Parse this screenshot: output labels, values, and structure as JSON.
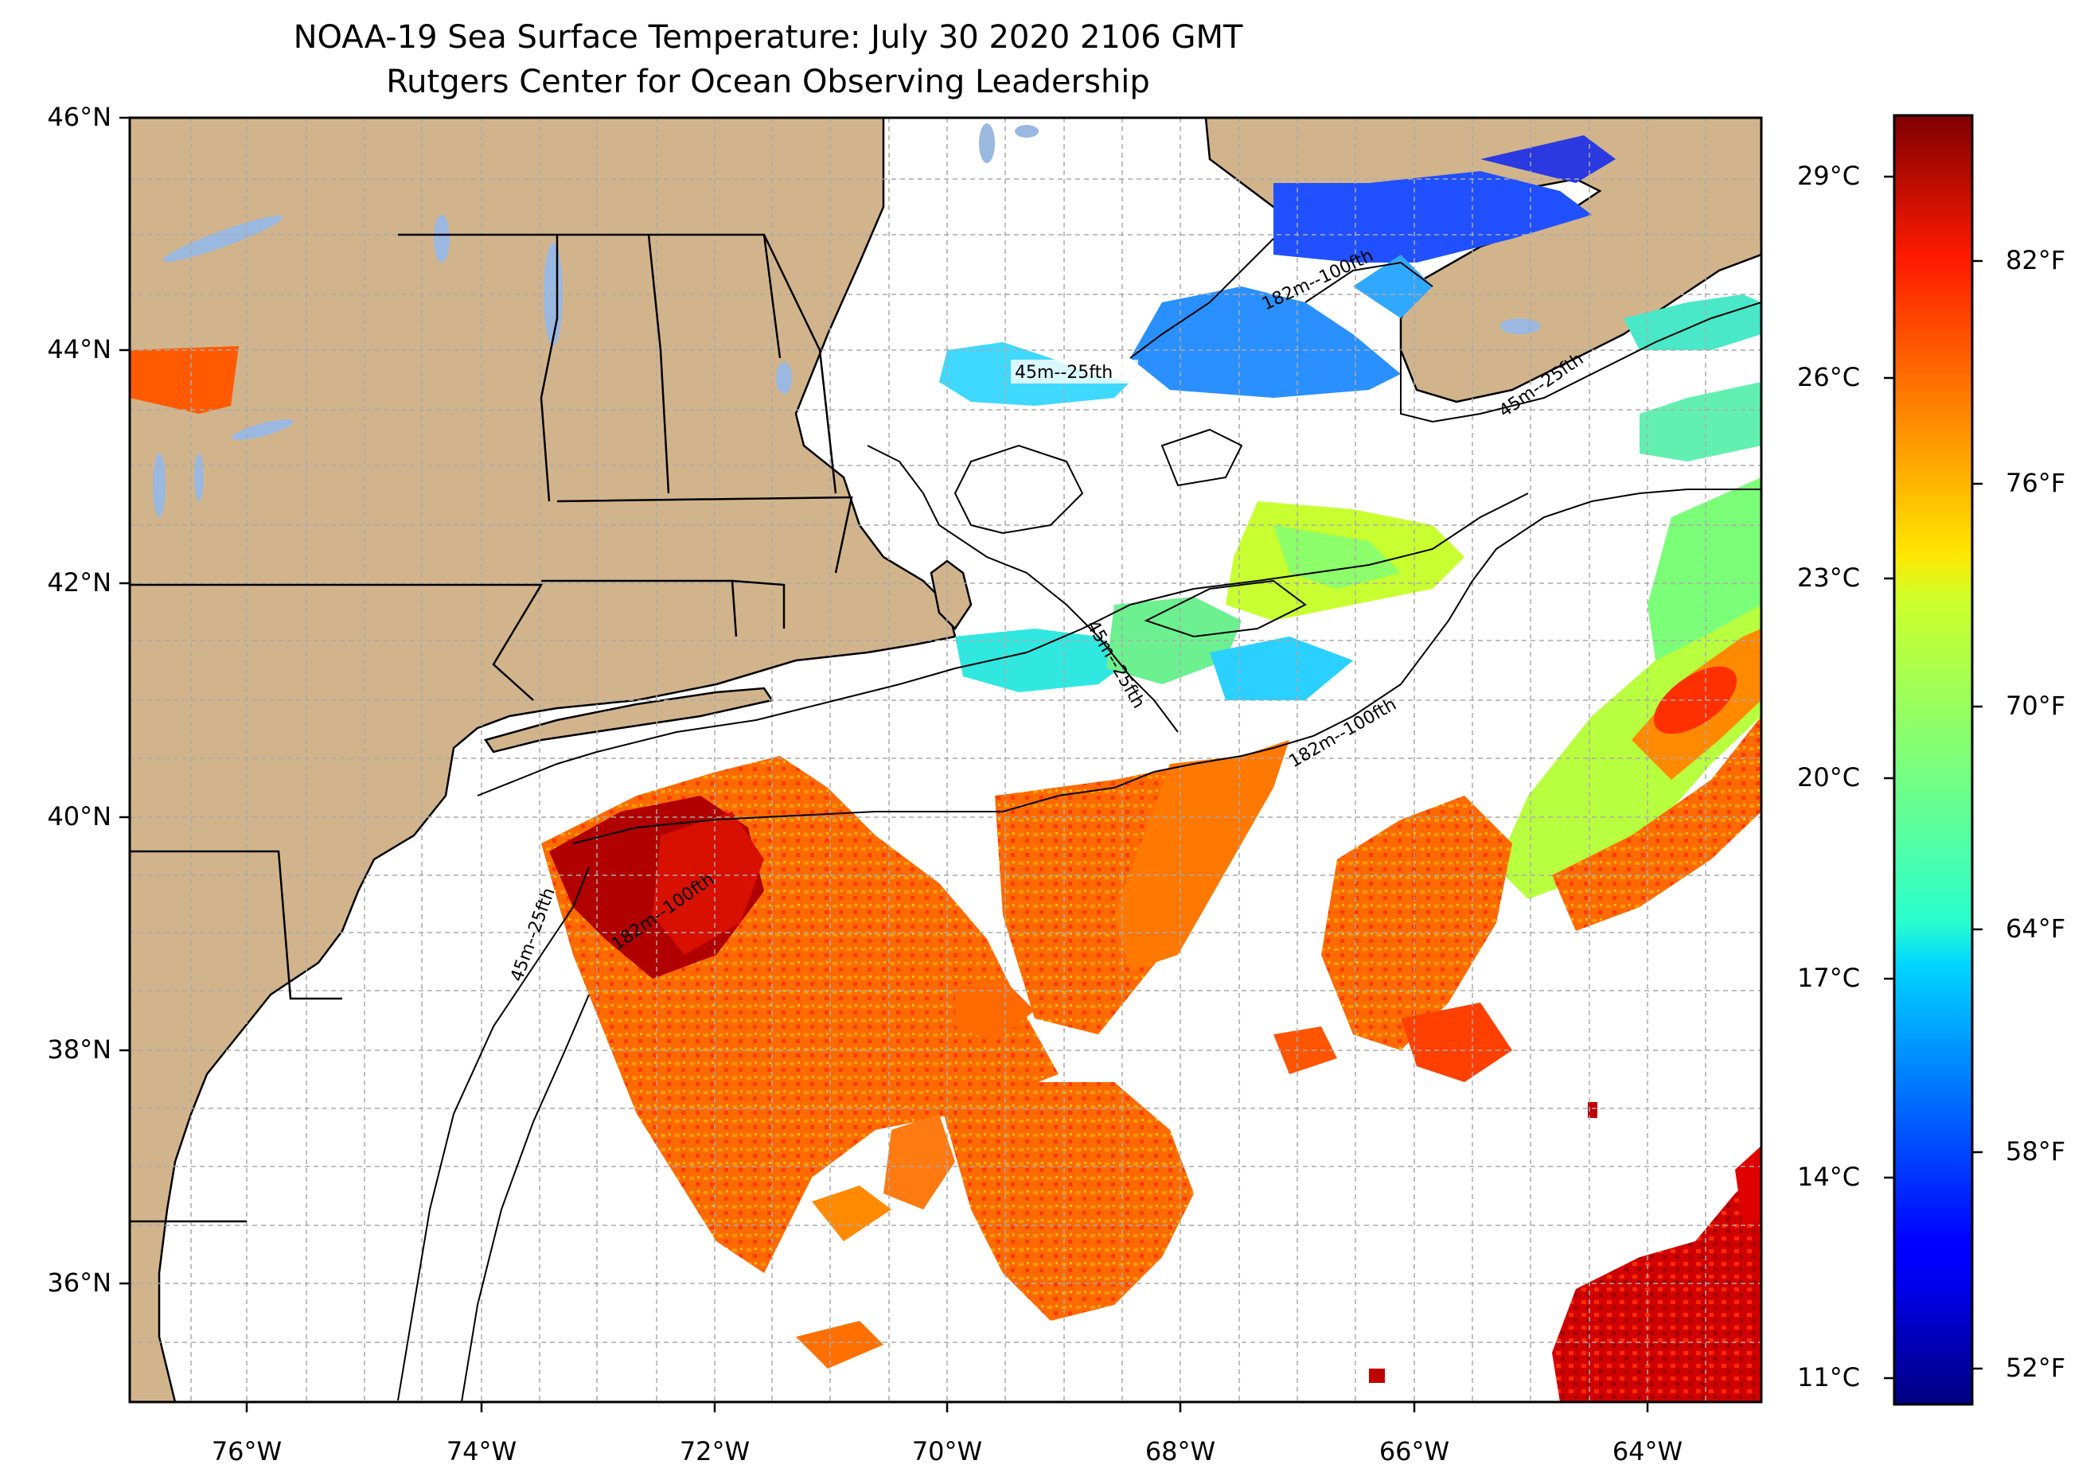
{
  "title": {
    "line1": "NOAA-19 Sea Surface Temperature: July 30 2020 2106 GMT",
    "line2": "Rutgers Center for Ocean Observing Leadership"
  },
  "axes": {
    "y_ticks": [
      "46°N",
      "44°N",
      "42°N",
      "40°N",
      "38°N",
      "36°N"
    ],
    "x_ticks": [
      "76°W",
      "74°W",
      "72°W",
      "70°W",
      "68°W",
      "66°W",
      "64°W"
    ]
  },
  "colorbar": {
    "celsius_ticks": [
      "29°C",
      "26°C",
      "23°C",
      "20°C",
      "17°C",
      "14°C",
      "11°C"
    ],
    "fahrenheit_ticks": [
      "82°F",
      "76°F",
      "70°F",
      "64°F",
      "58°F",
      "52°F"
    ],
    "celsius_range": [
      10.2,
      30
    ],
    "colormap": "jet"
  },
  "contours": [
    {
      "label": "45m--25fth"
    },
    {
      "label": "182m--100fth"
    }
  ],
  "colors": {
    "land": "#d2b48c",
    "water_bodies": "#9ab8e0",
    "background": "#ffffff",
    "warm_core": "#ff5a00",
    "hot": "#cc0000",
    "cool": "#2060ff"
  }
}
